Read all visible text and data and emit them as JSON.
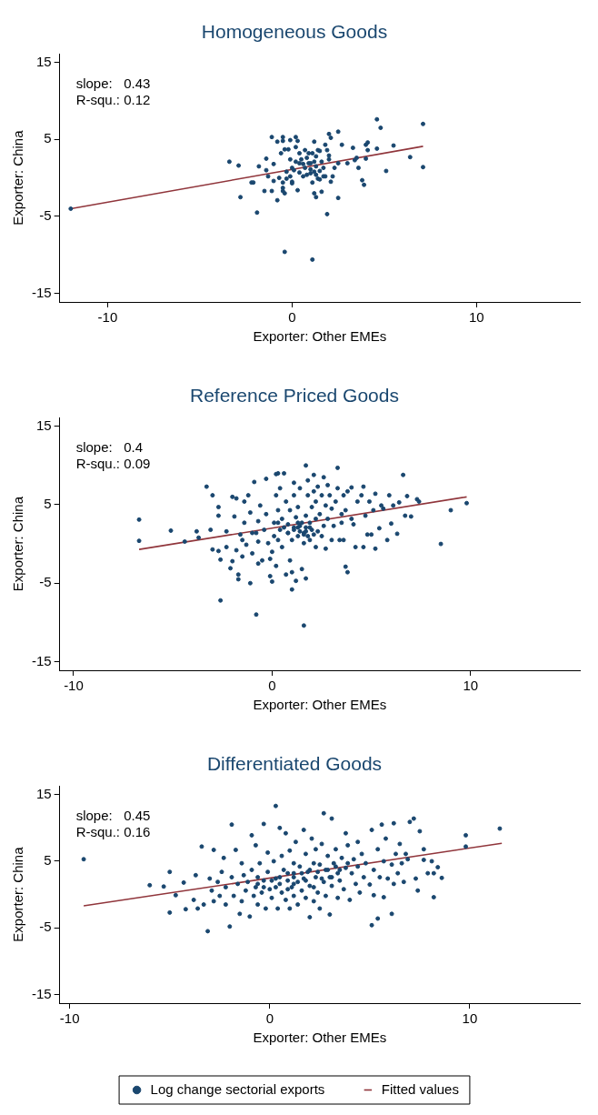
{
  "chart_data": [
    {
      "type": "scatter",
      "title": "Homogeneous Goods",
      "xlabel": "Exporter: Other EMEs",
      "ylabel": "Exporter: China",
      "annotations": [
        "slope:   0.43",
        "R-squ.: 0.12"
      ],
      "xlim": [
        -12.6,
        15.6
      ],
      "xticks": [
        -10,
        0,
        10
      ],
      "ylim": [
        -16.1,
        16.1
      ],
      "yticks": [
        -15,
        -5,
        5,
        15
      ],
      "grid": false,
      "series": [
        {
          "type": "scatter",
          "marker": "circle",
          "color": "#1a476f",
          "x": [
            -12.0,
            -3.4,
            -2.9,
            -2.8,
            -2.2,
            -2.1,
            -1.9,
            -1.8,
            -1.5,
            -1.4,
            -1.4,
            -1.3,
            -1.1,
            -1.1,
            -1.0,
            -1.0,
            -0.8,
            -0.8,
            -0.7,
            -0.6,
            -0.5,
            -0.5,
            -0.5,
            -0.5,
            -0.5,
            -0.4,
            -0.4,
            -0.4,
            -0.3,
            -0.3,
            -0.2,
            -0.1,
            -0.1,
            0,
            0.0,
            0.0,
            0.2,
            0.2,
            0.2,
            0.3,
            0.3,
            0.4,
            0.4,
            0.5,
            0.6,
            0.7,
            0.7,
            0.8,
            0.9,
            1.0,
            1.0,
            1.1,
            1.1,
            1.1,
            1.2,
            1.2,
            1.2,
            1.3,
            1.3,
            1.3,
            1.4,
            1.4,
            1.5,
            1.5,
            1.6,
            1.7,
            1.7,
            1.8,
            1.8,
            1.9,
            1.9,
            2.0,
            2.0,
            2.0,
            2.1,
            2.1,
            2.2,
            2.3,
            2.5,
            2.5,
            2.5,
            2.7,
            3.0,
            3.3,
            3.4,
            3.5,
            3.6,
            3.8,
            3.9,
            4.0,
            4.0,
            4.1,
            4.1,
            4.6,
            4.6,
            4.8,
            5.1,
            5.5,
            6.4,
            7.1,
            7.1,
            0.9,
            1.0,
            1.2,
            0.6,
            0.8,
            1.3,
            1.5,
            1.6,
            0.1,
            0.4,
            -0.1
          ],
          "values": [
            -4.0,
            2.1,
            1.6,
            -2.5,
            -0.6,
            -0.6,
            -4.5,
            1.5,
            -1.7,
            2.5,
            1.0,
            0.2,
            5.3,
            -1.7,
            -0.4,
            1.8,
            4.7,
            -2.9,
            0.0,
            3.2,
            5.3,
            -0.6,
            -1.3,
            -1.7,
            4.8,
            3.7,
            -2.0,
            -9.6,
            -0.1,
            0.8,
            3.7,
            2.4,
            4.9,
            -0.5,
            -0.7,
            1.3,
            5.3,
            2.1,
            4.0,
            -1.6,
            4.8,
            0.7,
            1.9,
            2.4,
            0.2,
            3.6,
            1.3,
            2.6,
            3.2,
            0.6,
            1.9,
            -0.6,
            3.2,
            -10.6,
            0.8,
            4.7,
            -2.0,
            -2.5,
            1.5,
            2.8,
            -0.1,
            3.6,
            3.5,
            -0.2,
            -1.8,
            1.3,
            0.2,
            4.3,
            0.2,
            3.6,
            -4.7,
            5.7,
            2.9,
            2.4,
            -0.5,
            5.2,
            0.2,
            1.3,
            1.9,
            6.0,
            -2.6,
            4.3,
            1.9,
            3.9,
            2.3,
            2.6,
            1.3,
            -0.3,
            -0.9,
            2.5,
            4.3,
            4.6,
            3.6,
            7.6,
            3.8,
            6.5,
            0.9,
            4.2,
            2.7,
            1.4,
            7.0,
            1.9,
            1.1,
            2.1,
            1.8,
            0.4,
            0.4,
            0.9,
            2.1,
            1.0,
            3.2,
            0.2
          ]
        },
        {
          "type": "line",
          "marker": "none",
          "color": "#90353b",
          "x": [
            -12.0,
            7.1
          ],
          "values": [
            -4.0,
            4.1
          ]
        }
      ]
    },
    {
      "type": "scatter",
      "title": "Reference Priced Goods",
      "xlabel": "Exporter: Other EMEs",
      "ylabel": "Exporter: China",
      "annotations": [
        "slope:   0.4",
        "R-squ.: 0.09"
      ],
      "xlim": [
        -10.7,
        15.5
      ],
      "xticks": [
        -10,
        0,
        10
      ],
      "ylim": [
        -16.1,
        16.1
      ],
      "yticks": [
        -15,
        -5,
        5,
        15
      ],
      "grid": false,
      "series": [
        {
          "type": "scatter",
          "marker": "circle",
          "color": "#1a476f",
          "x": [
            -6.7,
            -6.7,
            -5.1,
            -4.4,
            -3.8,
            -3.7,
            -3.3,
            -3.1,
            -3.0,
            -3.0,
            -2.7,
            -2.7,
            -2.7,
            -2.6,
            -2.6,
            -2.3,
            -2.3,
            -2.1,
            -2.0,
            -2.0,
            -1.9,
            -1.8,
            -1.8,
            -1.7,
            -1.7,
            -1.6,
            -1.5,
            -1.5,
            -1.4,
            -1.4,
            -1.3,
            -1.2,
            -1.1,
            -1.1,
            -1.0,
            -1.0,
            -0.9,
            -0.8,
            -0.8,
            -0.7,
            -0.7,
            -0.7,
            -0.6,
            -0.5,
            -0.4,
            -0.3,
            -0.3,
            -0.2,
            -0.1,
            -0.1,
            0.0,
            0,
            0.1,
            0.1,
            0.2,
            0.2,
            0.2,
            0.3,
            0.3,
            0.3,
            0.4,
            0.4,
            0.5,
            0.5,
            0.6,
            0.7,
            0.7,
            0.8,
            0.8,
            0.9,
            0.9,
            1.0,
            1.0,
            1.0,
            1.1,
            1.1,
            1.1,
            1.2,
            1.2,
            1.3,
            1.3,
            1.3,
            1.4,
            1.4,
            1.5,
            1.5,
            1.6,
            1.6,
            1.6,
            1.7,
            1.7,
            1.7,
            1.7,
            1.8,
            1.8,
            1.8,
            1.9,
            1.9,
            2.0,
            2.0,
            2.1,
            2.1,
            2.2,
            2.2,
            2.2,
            2.3,
            2.3,
            2.4,
            2.5,
            2.5,
            2.6,
            2.6,
            2.7,
            2.7,
            2.8,
            2.8,
            2.9,
            3.0,
            3.0,
            3.1,
            3.2,
            3.3,
            3.3,
            3.4,
            3.5,
            3.5,
            3.6,
            3.6,
            3.7,
            3.7,
            3.8,
            3.8,
            4.0,
            4.0,
            4.1,
            4.2,
            4.3,
            4.5,
            4.6,
            4.6,
            4.7,
            4.8,
            4.9,
            5.0,
            5.1,
            5.2,
            5.2,
            5.4,
            5.5,
            5.6,
            5.8,
            5.9,
            6.0,
            6.1,
            6.3,
            6.4,
            6.6,
            6.7,
            6.8,
            7.0,
            7.3,
            7.4,
            8.5,
            9.0,
            9.8,
            1.4,
            1.7,
            1.1,
            1.9,
            1.6,
            1.3,
            2.1,
            0.8,
            0.6,
            0.3
          ],
          "values": [
            3.1,
            0.4,
            1.7,
            0.3,
            1.6,
            0.8,
            7.3,
            1.8,
            6.2,
            -0.7,
            4.7,
            3.6,
            -0.9,
            -2.0,
            -7.2,
            1.6,
            -0.4,
            -3.1,
            6.0,
            -2.2,
            3.5,
            5.8,
            -0.8,
            -3.9,
            -4.5,
            1.2,
            0.5,
            -1.6,
            2.7,
            5.4,
            -0.1,
            6.2,
            -5.0,
            4.0,
            1.4,
            -1.2,
            7.9,
            1.4,
            -9.0,
            0.3,
            2.9,
            -2.5,
            4.9,
            -2.1,
            1.8,
            8.3,
            3.8,
            0.1,
            -1.9,
            -4.1,
            -4.8,
            -1.0,
            2.7,
            1.0,
            8.9,
            6.2,
            -2.8,
            4.3,
            9.0,
            0.5,
            7.1,
            1.8,
            3.2,
            -0.4,
            9.0,
            -3.9,
            5.4,
            1.4,
            2.5,
            -2.1,
            4.3,
            0.5,
            -5.8,
            -3.6,
            6.2,
            1.8,
            7.8,
            3.4,
            -4.7,
            1.0,
            2.1,
            4.7,
            1.6,
            7.1,
            2.7,
            -3.2,
            -10.4,
            0.1,
            1.4,
            10.0,
            3.6,
            -4.4,
            2.1,
            6.2,
            1.0,
            8.1,
            2.7,
            0.5,
            4.7,
            1.8,
            8.8,
            6.7,
            3.2,
            -0.4,
            5.4,
            1.6,
            7.3,
            3.8,
            1.0,
            6.2,
            8.5,
            2.3,
            4.9,
            -0.6,
            7.5,
            3.2,
            6.2,
            0.5,
            4.5,
            2.3,
            5.4,
            7.1,
            9.7,
            0.5,
            3.8,
            2.7,
            6.2,
            0.5,
            -2.9,
            4.3,
            -3.6,
            6.7,
            3.2,
            7.2,
            2.5,
            -0.4,
            5.4,
            6.2,
            -0.4,
            7.3,
            3.6,
            1.2,
            5.4,
            1.2,
            4.3,
            6.4,
            -0.6,
            2.0,
            4.9,
            4.5,
            0.5,
            6.2,
            2.6,
            4.9,
            1.3,
            5.3,
            8.8,
            3.6,
            6.1,
            3.5,
            5.7,
            5.4,
            0.0,
            4.3,
            5.2,
            2.3,
            1.6,
            2.1,
            2.1,
            1.2,
            2.7,
            1.2,
            1.4,
            2.1,
            2.7
          ]
        },
        {
          "type": "line",
          "marker": "none",
          "color": "#90353b",
          "x": [
            -6.7,
            9.8
          ],
          "values": [
            -0.7,
            6.0
          ]
        }
      ]
    },
    {
      "type": "scatter",
      "title": "Differentiated Goods",
      "xlabel": "Exporter: Other EMEs",
      "ylabel": "Exporter: China",
      "annotations": [
        "slope:   0.45",
        "R-squ.: 0.16"
      ],
      "xlim": [
        -10.5,
        15.5
      ],
      "xticks": [
        -10,
        0,
        10
      ],
      "ylim": [
        -16.3,
        16.3
      ],
      "yticks": [
        -15,
        -5,
        5,
        15
      ],
      "grid": false,
      "legend": "bottom",
      "series": [
        {
          "type": "scatter",
          "marker": "circle",
          "name": "Log change sectorial exports",
          "color": "#1a476f",
          "x": [
            -9.3,
            -6.0,
            -5.3,
            -5.0,
            -5.0,
            -4.7,
            -4.3,
            -4.2,
            -3.8,
            -3.7,
            -3.6,
            -3.4,
            -3.3,
            -3.1,
            -3.0,
            -2.9,
            -2.8,
            -2.8,
            -2.6,
            -2.5,
            -2.4,
            -2.3,
            -2.2,
            -2.2,
            -2.0,
            -1.9,
            -1.9,
            -1.8,
            -1.7,
            -1.6,
            -1.5,
            -1.4,
            -1.4,
            -1.3,
            -1.2,
            -1.1,
            -1.0,
            -0.9,
            -0.9,
            -0.8,
            -0.7,
            -0.7,
            -0.6,
            -0.6,
            -0.5,
            -0.4,
            -0.3,
            -0.3,
            -0.2,
            -0.1,
            -0.1,
            0.0,
            0.1,
            0.2,
            0.3,
            0.3,
            0.4,
            0.5,
            0.5,
            0.6,
            0.6,
            0.7,
            0.8,
            0.8,
            0.9,
            1.0,
            1.0,
            1.1,
            1.2,
            1.2,
            1.2,
            1.3,
            1.4,
            1.4,
            1.5,
            1.6,
            1.7,
            1.7,
            1.8,
            1.8,
            1.9,
            2.0,
            2.0,
            2.1,
            2.2,
            2.2,
            2.3,
            2.3,
            2.4,
            2.5,
            2.5,
            2.6,
            2.7,
            2.7,
            2.8,
            2.8,
            2.9,
            3.0,
            3.0,
            3.1,
            3.1,
            3.2,
            3.3,
            3.4,
            3.4,
            3.5,
            3.6,
            3.7,
            3.8,
            3.8,
            3.9,
            4.0,
            4.1,
            4.2,
            4.3,
            4.4,
            4.4,
            4.5,
            4.6,
            4.7,
            4.8,
            5.0,
            5.1,
            5.1,
            5.2,
            5.2,
            5.4,
            5.4,
            5.5,
            5.6,
            5.7,
            5.7,
            5.8,
            5.9,
            6.1,
            6.1,
            6.2,
            6.2,
            6.3,
            6.4,
            6.5,
            6.6,
            6.7,
            6.8,
            6.9,
            7.0,
            7.2,
            7.3,
            7.4,
            7.5,
            7.7,
            7.7,
            7.9,
            8.1,
            8.2,
            8.2,
            8.4,
            8.6,
            9.8,
            9.8,
            11.5,
            1.2,
            1.6,
            2.0,
            2.4,
            2.9,
            3.3,
            0.9,
            0.5,
            0.1,
            0.3,
            1.2,
            1.8,
            2.6,
            3.5,
            3.9,
            -0.3,
            -0.6,
            0.9,
            2.2,
            3.1
          ],
          "values": [
            5.3,
            1.4,
            1.2,
            3.4,
            -2.7,
            -0.1,
            1.8,
            -2.2,
            -0.8,
            2.9,
            -2.1,
            7.2,
            -1.5,
            -5.5,
            2.4,
            0.6,
            6.7,
            -1.0,
            1.9,
            -0.2,
            3.4,
            5.5,
            -1.5,
            1.1,
            -4.8,
            10.5,
            2.6,
            -0.2,
            6.7,
            1.6,
            -2.9,
            4.7,
            -1.0,
            2.9,
            0.6,
            1.9,
            -3.3,
            8.9,
            3.7,
            -0.2,
            1.1,
            7.4,
            2.6,
            -1.5,
            4.7,
            0.3,
            10.6,
            2.1,
            -2.1,
            6.3,
            3.4,
            0.8,
            -0.5,
            5.0,
            2.4,
            13.3,
            -2.1,
            10.0,
            1.6,
            0.3,
            5.8,
            3.7,
            -0.8,
            9.2,
            2.1,
            -2.1,
            6.6,
            1.1,
            4.7,
            3.2,
            -0.2,
            7.9,
            -1.5,
            1.9,
            4.2,
            0.6,
            9.7,
            2.4,
            6.1,
            -0.5,
            3.4,
            -3.4,
            1.3,
            8.4,
            4.7,
            -1.0,
            2.6,
            6.8,
            0.3,
            4.5,
            -2.1,
            7.6,
            12.2,
            1.9,
            3.7,
            -0.2,
            5.8,
            -3.0,
            2.6,
            11.4,
            1.3,
            4.7,
            6.8,
            -0.5,
            3.2,
            2.1,
            5.5,
            0.8,
            9.2,
            4.0,
            7.4,
            -0.8,
            3.2,
            5.3,
            1.6,
            7.9,
            4.2,
            0.3,
            6.1,
            2.6,
            4.7,
            1.5,
            -4.6,
            9.7,
            3.7,
            -0.1,
            6.8,
            -3.6,
            2.6,
            10.5,
            5.0,
            -0.4,
            8.4,
            2.4,
            4.5,
            -2.9,
            10.7,
            1.6,
            6.1,
            3.2,
            7.6,
            4.7,
            1.9,
            6.1,
            5.3,
            10.9,
            11.4,
            2.4,
            0.6,
            9.5,
            6.8,
            5.2,
            3.2,
            5.0,
            -0.4,
            3.2,
            4.1,
            2.5,
            8.9,
            7.2,
            9.9,
            2.6,
            3.2,
            3.7,
            3.4,
            3.7,
            4.2,
            3.2,
            2.6,
            2.1,
            1.1,
            1.6,
            2.1,
            2.4,
            3.7,
            4.7,
            1.1,
            1.6,
            0.8,
            1.1,
            2.6
          ]
        },
        {
          "type": "line",
          "marker": "none",
          "name": "Fitted values",
          "color": "#90353b",
          "x": [
            -9.3,
            11.6
          ],
          "values": [
            -1.7,
            7.7
          ]
        }
      ]
    }
  ]
}
